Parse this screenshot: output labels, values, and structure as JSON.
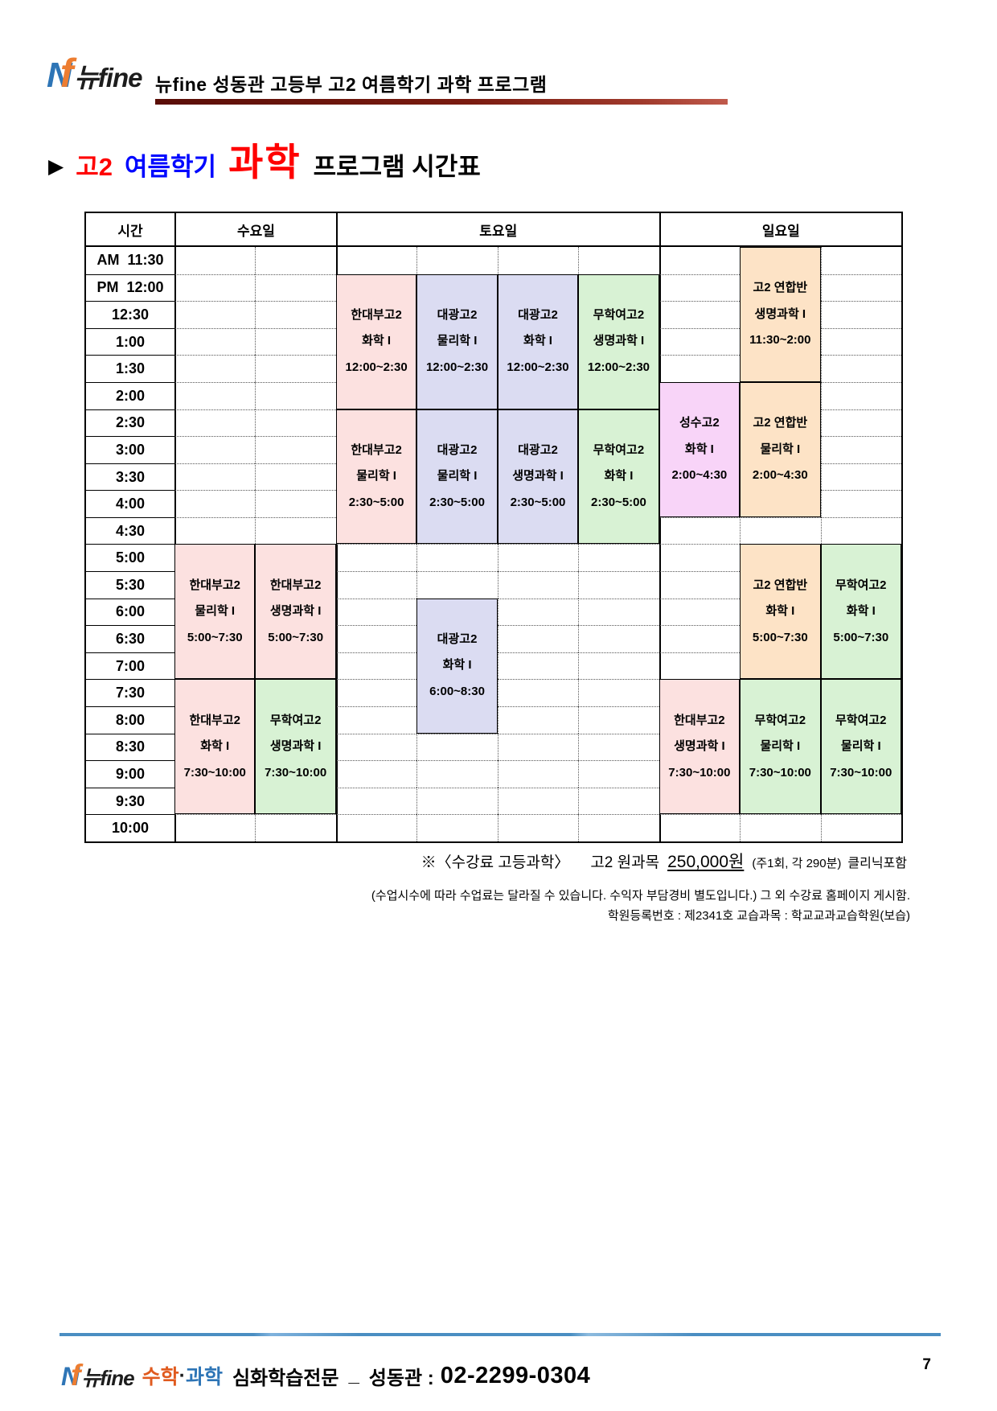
{
  "brand": {
    "n": "N",
    "f": "f",
    "name": "뉴fine"
  },
  "header": {
    "title": "뉴fine 성동관 고등부 고2 여름학기 과학 프로그램",
    "rule_color_start": "#5a0e07",
    "rule_color_end": "#c05a4c"
  },
  "page_title": {
    "arrow": "▶",
    "grade": "고2",
    "term": "여름학기",
    "subject": "과학",
    "rest": "프로그램  시간표",
    "grade_color": "#ff0000",
    "term_color": "#0008ff",
    "subject_color": "#ff0000"
  },
  "timetable": {
    "header": {
      "time": "시간",
      "days": [
        {
          "label": "수요일",
          "cols": 2
        },
        {
          "label": "토요일",
          "cols": 4
        },
        {
          "label": "일요일",
          "cols": 3
        }
      ]
    },
    "times": [
      "AM  11:30",
      "PM  12:00",
      "12:30",
      "1:00",
      "1:30",
      "2:00",
      "2:30",
      "3:00",
      "3:30",
      "4:00",
      "4:30",
      "5:00",
      "5:30",
      "6:00",
      "6:30",
      "7:00",
      "7:30",
      "8:00",
      "8:30",
      "9:00",
      "9:30",
      "10:00"
    ],
    "colors": {
      "pink": "#fce1e0",
      "lavender": "#dbdcf2",
      "green": "#d8f2d4",
      "peach": "#fde3c6",
      "violet": "#f8d4f8"
    },
    "blocks": [
      {
        "day": "수요일",
        "col": 0,
        "row": 11,
        "span": 5,
        "color": "pink",
        "school": "한대부고2",
        "subject": "물리학 I",
        "time": "5:00~7:30"
      },
      {
        "day": "수요일",
        "col": 1,
        "row": 11,
        "span": 5,
        "color": "pink",
        "school": "한대부고2",
        "subject": "생명과학 I",
        "time": "5:00~7:30"
      },
      {
        "day": "수요일",
        "col": 0,
        "row": 16,
        "span": 5,
        "color": "pink",
        "school": "한대부고2",
        "subject": "화학 I",
        "time": "7:30~10:00"
      },
      {
        "day": "수요일",
        "col": 1,
        "row": 16,
        "span": 5,
        "color": "green",
        "school": "무학여고2",
        "subject": "생명과학 I",
        "time": "7:30~10:00"
      },
      {
        "day": "토요일",
        "col": 2,
        "row": 1,
        "span": 5,
        "color": "pink",
        "school": "한대부고2",
        "subject": "화학 I",
        "time": "12:00~2:30"
      },
      {
        "day": "토요일",
        "col": 3,
        "row": 1,
        "span": 5,
        "color": "lavender",
        "school": "대광고2",
        "subject": "물리학 I",
        "time": "12:00~2:30"
      },
      {
        "day": "토요일",
        "col": 4,
        "row": 1,
        "span": 5,
        "color": "lavender",
        "school": "대광고2",
        "subject": "화학 I",
        "time": "12:00~2:30"
      },
      {
        "day": "토요일",
        "col": 5,
        "row": 1,
        "span": 5,
        "color": "green",
        "school": "무학여고2",
        "subject": "생명과학 I",
        "time": "12:00~2:30"
      },
      {
        "day": "토요일",
        "col": 2,
        "row": 6,
        "span": 5,
        "color": "pink",
        "school": "한대부고2",
        "subject": "물리학 I",
        "time": "2:30~5:00"
      },
      {
        "day": "토요일",
        "col": 3,
        "row": 6,
        "span": 5,
        "color": "lavender",
        "school": "대광고2",
        "subject": "물리학 I",
        "time": "2:30~5:00"
      },
      {
        "day": "토요일",
        "col": 4,
        "row": 6,
        "span": 5,
        "color": "lavender",
        "school": "대광고2",
        "subject": "생명과학 I",
        "time": "2:30~5:00"
      },
      {
        "day": "토요일",
        "col": 5,
        "row": 6,
        "span": 5,
        "color": "green",
        "school": "무학여고2",
        "subject": "화학 I",
        "time": "2:30~5:00"
      },
      {
        "day": "토요일",
        "col": 3,
        "row": 13,
        "span": 5,
        "color": "lavender",
        "school": "대광고2",
        "subject": "화학 I",
        "time": "6:00~8:30"
      },
      {
        "day": "일요일",
        "col": 7,
        "row": 0,
        "span": 5,
        "color": "peach",
        "school": "고2 연합반",
        "subject": "생명과학 I",
        "time": "11:30~2:00"
      },
      {
        "day": "일요일",
        "col": 6,
        "row": 5,
        "span": 5,
        "color": "violet",
        "school": "성수고2",
        "subject": "화학 I",
        "time": "2:00~4:30"
      },
      {
        "day": "일요일",
        "col": 7,
        "row": 5,
        "span": 5,
        "color": "peach",
        "school": "고2 연합반",
        "subject": "물리학 I",
        "time": "2:00~4:30"
      },
      {
        "day": "일요일",
        "col": 7,
        "row": 11,
        "span": 5,
        "color": "peach",
        "school": "고2 연합반",
        "subject": "화학 I",
        "time": "5:00~7:30"
      },
      {
        "day": "일요일",
        "col": 8,
        "row": 11,
        "span": 5,
        "color": "green",
        "school": "무학여고2",
        "subject": "화학 I",
        "time": "5:00~7:30"
      },
      {
        "day": "일요일",
        "col": 6,
        "row": 16,
        "span": 5,
        "color": "pink",
        "school": "한대부고2",
        "subject": "생명과학 I",
        "time": "7:30~10:00"
      },
      {
        "day": "일요일",
        "col": 7,
        "row": 16,
        "span": 5,
        "color": "green",
        "school": "무학여고2",
        "subject": "물리학 I",
        "time": "7:30~10:00"
      },
      {
        "day": "일요일",
        "col": 8,
        "row": 16,
        "span": 5,
        "color": "green",
        "school": "무학여고2",
        "subject": "물리학 I",
        "time": "7:30~10:00"
      }
    ]
  },
  "notes": {
    "fee_prefix": "※〈수강료 고등과학〉",
    "fee_course": "고2 원과목",
    "fee_price": "250,000원",
    "fee_detail": "(주1회, 각 290분)",
    "fee_suffix": "클리닉포함",
    "line2": "(수업시수에 따라 수업료는 달라질 수 있습니다. 수익자 부담경비 별도입니다.) 그 외 수강료 홈페이지 게시함.",
    "line3": "학원등록번호 : 제2341호 교습과목 : 학교교과교습학원(보습)"
  },
  "footer": {
    "math": "수학",
    "dot": "·",
    "science": "과학",
    "specialty": "심화학습전문",
    "separator": "_",
    "branch": "성동관 :",
    "phone": "02-2299-0304",
    "page_number": "7",
    "math_color": "#e05a1e",
    "science_color": "#2e75b6",
    "line_color": "#4a8ec2"
  }
}
